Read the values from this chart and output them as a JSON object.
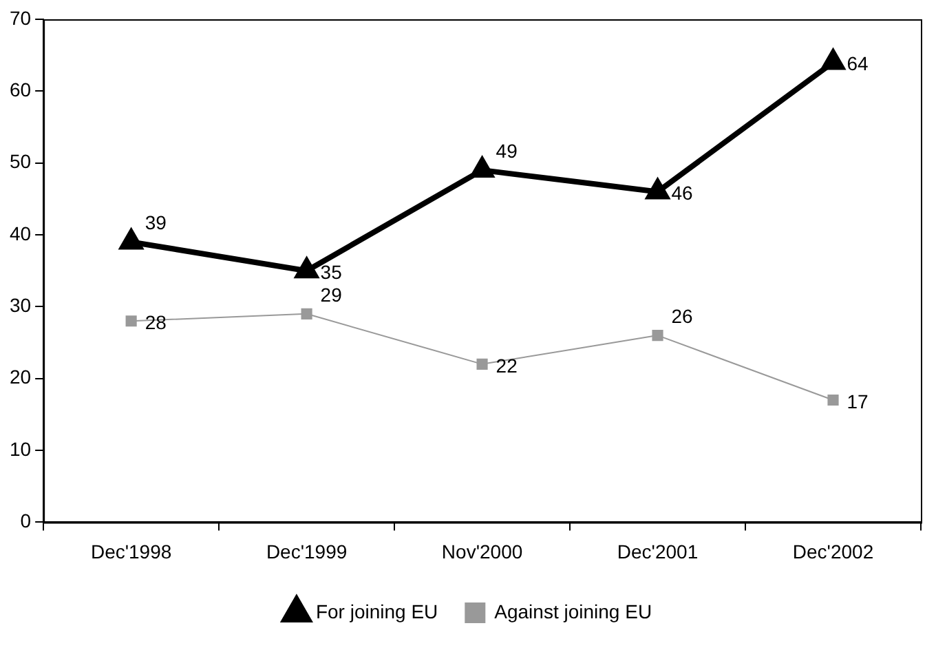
{
  "chart_data": {
    "type": "line",
    "categories": [
      "Dec'1998",
      "Dec'1999",
      "Nov'2000",
      "Dec'2001",
      "Dec'2002"
    ],
    "series": [
      {
        "name": "For joining EU",
        "color": "#000000",
        "values": [
          39,
          35,
          49,
          46,
          64
        ],
        "marker": "triangle"
      },
      {
        "name": "Against joining EU",
        "color": "#999999",
        "values": [
          28,
          29,
          22,
          26,
          17
        ],
        "marker": "square"
      }
    ],
    "ylim": [
      0,
      70
    ],
    "yticks": [
      0,
      10,
      20,
      30,
      40,
      50,
      60,
      70
    ],
    "grid": false,
    "legend": "bottom",
    "data_labels": true,
    "line_style": "solid"
  }
}
